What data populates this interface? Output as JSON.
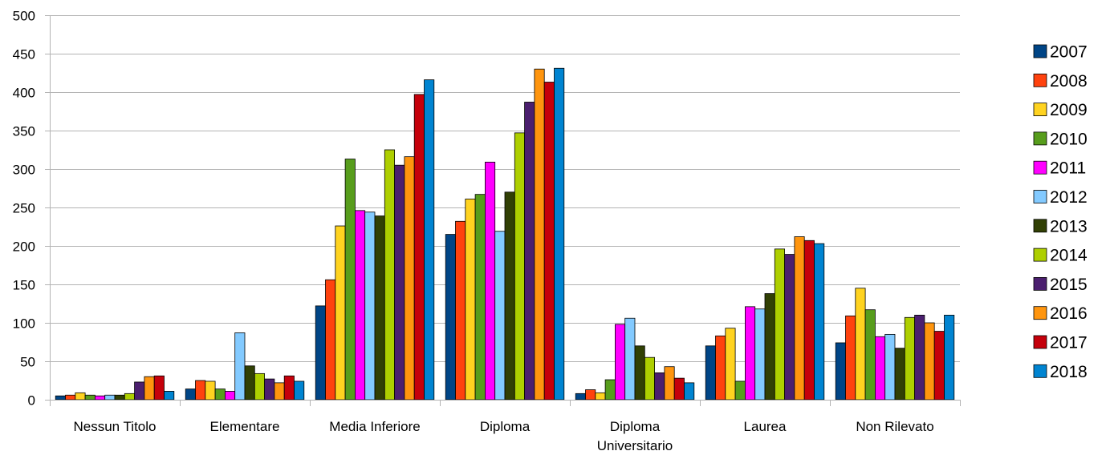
{
  "chart_data": {
    "type": "bar",
    "categories": [
      [
        "Nessun Titolo"
      ],
      [
        "Elementare"
      ],
      [
        "Media Inferiore"
      ],
      [
        "Diploma"
      ],
      [
        "Diploma",
        "Universitario"
      ],
      [
        "Laurea"
      ],
      [
        "Non Rilevato"
      ]
    ],
    "ylim": [
      0,
      500
    ],
    "yticks": [
      0,
      50,
      100,
      150,
      200,
      250,
      300,
      350,
      400,
      450,
      500
    ],
    "grid": true,
    "legend_position": "right",
    "series": [
      {
        "name": "2007",
        "color": "#004586",
        "values": [
          5,
          14,
          122,
          215,
          8,
          70,
          74
        ]
      },
      {
        "name": "2008",
        "color": "#ff420e",
        "values": [
          6,
          25,
          156,
          232,
          13,
          83,
          109
        ]
      },
      {
        "name": "2009",
        "color": "#ffd320",
        "values": [
          9,
          24,
          226,
          261,
          9,
          93,
          145
        ]
      },
      {
        "name": "2010",
        "color": "#579d1c",
        "values": [
          6,
          14,
          313,
          267,
          26,
          24,
          117
        ]
      },
      {
        "name": "2011",
        "color": "#ff00ff",
        "values": [
          5,
          11,
          246,
          309,
          98,
          121,
          82
        ]
      },
      {
        "name": "2012",
        "color": "#83caff",
        "values": [
          6,
          87,
          244,
          219,
          106,
          118,
          85
        ]
      },
      {
        "name": "2013",
        "color": "#314004",
        "values": [
          6,
          44,
          239,
          270,
          70,
          138,
          67
        ]
      },
      {
        "name": "2014",
        "color": "#aecf00",
        "values": [
          8,
          34,
          325,
          347,
          55,
          196,
          107
        ]
      },
      {
        "name": "2015",
        "color": "#4b1f6f",
        "values": [
          23,
          27,
          305,
          387,
          35,
          189,
          110
        ]
      },
      {
        "name": "2016",
        "color": "#ff950e",
        "values": [
          30,
          22,
          316,
          430,
          43,
          212,
          100
        ]
      },
      {
        "name": "2017",
        "color": "#c5000b",
        "values": [
          31,
          31,
          397,
          413,
          28,
          207,
          89
        ]
      },
      {
        "name": "2018",
        "color": "#0084d1",
        "values": [
          11,
          24,
          416,
          431,
          22,
          203,
          110
        ]
      }
    ]
  }
}
